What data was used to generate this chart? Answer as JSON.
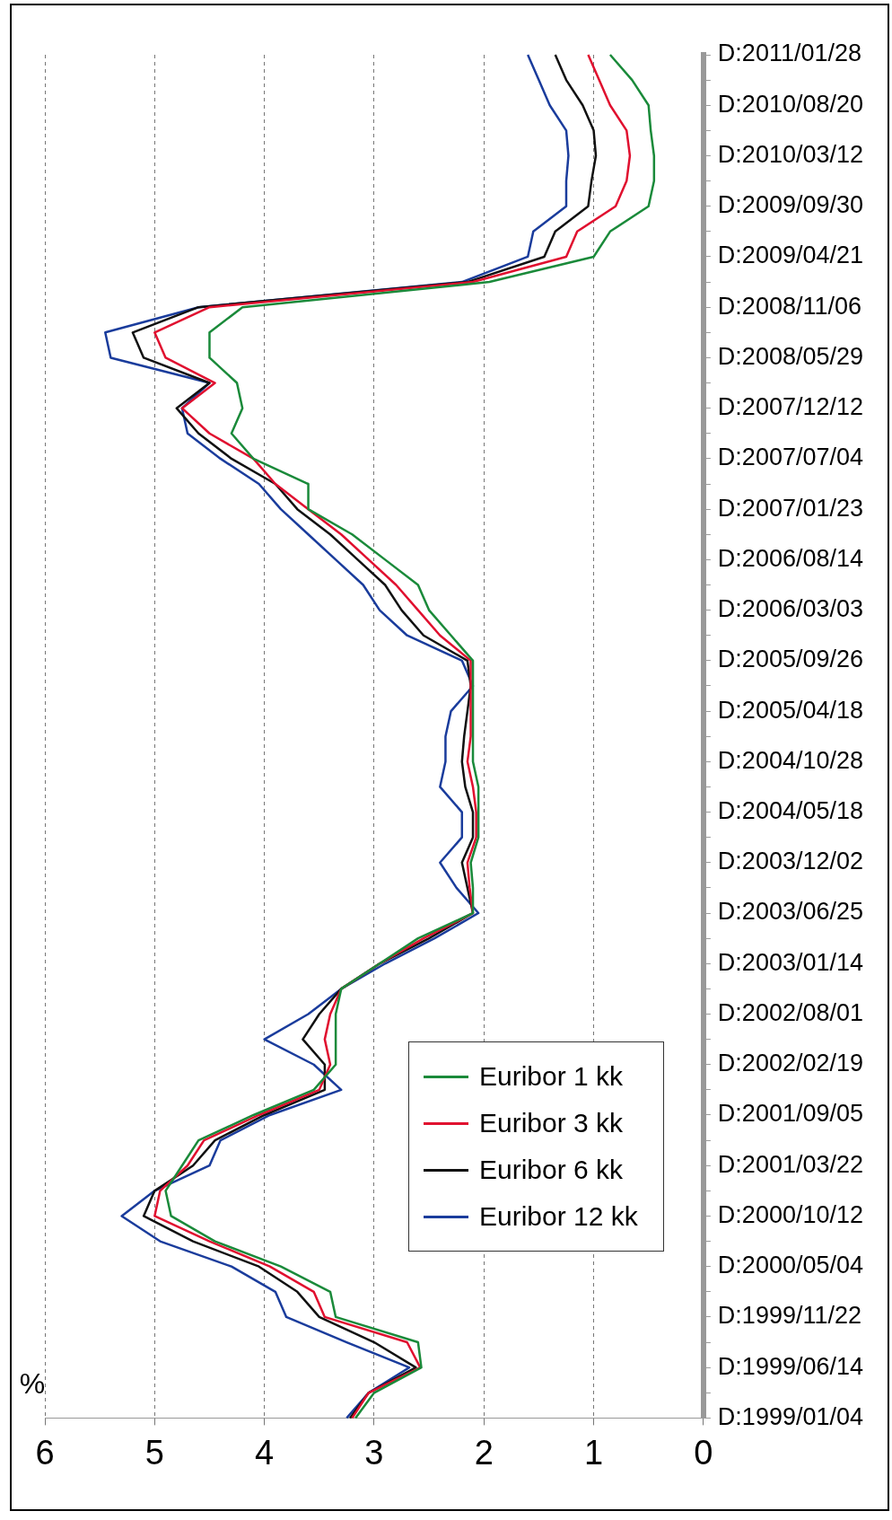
{
  "chart_data": {
    "type": "line",
    "orientation": "horizontal",
    "xlabel": "%",
    "legend": "bottom right",
    "grid": "x",
    "marker": "none",
    "xlim": [
      6,
      0
    ],
    "xticks": [
      6,
      5,
      4,
      3,
      2,
      1,
      0
    ],
    "categories": [
      "D:2011/01/28",
      null,
      "D:2010/08/20",
      null,
      "D:2010/03/12",
      null,
      "D:2009/09/30",
      null,
      "D:2009/04/21",
      null,
      "D:2008/11/06",
      null,
      "D:2008/05/29",
      null,
      "D:2007/12/12",
      null,
      "D:2007/07/04",
      null,
      "D:2007/01/23",
      null,
      "D:2006/08/14",
      null,
      "D:2006/03/03",
      null,
      "D:2005/09/26",
      null,
      "D:2005/04/18",
      null,
      "D:2004/10/28",
      null,
      "D:2004/05/18",
      null,
      "D:2003/12/02",
      null,
      "D:2003/06/25",
      null,
      "D:2003/01/14",
      null,
      "D:2002/08/01",
      null,
      "D:2002/02/19",
      null,
      "D:2001/09/05",
      null,
      "D:2001/03/22",
      null,
      "D:2000/10/12",
      null,
      "D:2000/05/04",
      null,
      "D:1999/11/22",
      null,
      "D:1999/06/14",
      null,
      "D:1999/01/04"
    ],
    "series": [
      {
        "name": "Euribor 1 kk",
        "color": "#1a8a3a",
        "values": [
          0.85,
          0.65,
          0.5,
          0.48,
          0.45,
          0.45,
          0.5,
          0.85,
          1.0,
          1.95,
          4.2,
          4.5,
          4.5,
          4.25,
          4.2,
          4.3,
          4.1,
          3.6,
          3.6,
          3.2,
          2.9,
          2.6,
          2.5,
          2.3,
          2.1,
          2.1,
          2.1,
          2.1,
          2.1,
          2.05,
          2.05,
          2.05,
          2.12,
          2.1,
          2.1,
          2.6,
          2.95,
          3.3,
          3.35,
          3.35,
          3.35,
          3.55,
          4.1,
          4.6,
          4.75,
          4.9,
          4.85,
          4.45,
          3.85,
          3.4,
          3.35,
          2.6,
          2.57,
          3.0,
          3.17
        ]
      },
      {
        "name": "Euribor 3 kk",
        "color": "#e0102f",
        "values": [
          1.05,
          0.95,
          0.85,
          0.7,
          0.67,
          0.7,
          0.8,
          1.15,
          1.25,
          2.1,
          4.5,
          5.0,
          4.9,
          4.45,
          4.75,
          4.5,
          4.1,
          3.9,
          3.6,
          3.3,
          3.05,
          2.8,
          2.6,
          2.4,
          2.12,
          2.12,
          2.12,
          2.12,
          2.15,
          2.1,
          2.07,
          2.07,
          2.15,
          2.13,
          2.1,
          2.55,
          2.95,
          3.3,
          3.4,
          3.45,
          3.4,
          3.5,
          4.05,
          4.55,
          4.7,
          4.95,
          5.0,
          4.5,
          3.95,
          3.55,
          3.45,
          2.7,
          2.58,
          3.05,
          3.2
        ]
      },
      {
        "name": "Euribor 6 kk",
        "color": "#111111",
        "values": [
          1.35,
          1.25,
          1.1,
          1.0,
          0.98,
          1.02,
          1.05,
          1.35,
          1.45,
          2.15,
          4.6,
          5.2,
          5.1,
          4.5,
          4.8,
          4.6,
          4.3,
          3.9,
          3.7,
          3.4,
          3.15,
          2.9,
          2.75,
          2.55,
          2.15,
          2.12,
          2.15,
          2.18,
          2.2,
          2.17,
          2.1,
          2.1,
          2.2,
          2.15,
          2.1,
          2.5,
          2.95,
          3.3,
          3.5,
          3.65,
          3.45,
          3.45,
          4.0,
          4.45,
          4.65,
          5.0,
          5.1,
          4.65,
          4.05,
          3.7,
          3.5,
          3.0,
          2.62,
          3.05,
          3.22
        ]
      },
      {
        "name": "Euribor 12 kk",
        "color": "#1a3c9c",
        "values": [
          1.6,
          1.5,
          1.4,
          1.25,
          1.23,
          1.25,
          1.25,
          1.55,
          1.6,
          2.2,
          4.6,
          5.45,
          5.4,
          4.5,
          4.75,
          4.7,
          4.4,
          4.05,
          3.85,
          3.6,
          3.35,
          3.1,
          2.95,
          2.7,
          2.2,
          2.1,
          2.3,
          2.35,
          2.35,
          2.4,
          2.2,
          2.2,
          2.4,
          2.25,
          2.05,
          2.45,
          2.9,
          3.3,
          3.6,
          4.0,
          3.55,
          3.3,
          3.95,
          4.4,
          4.5,
          5.0,
          5.3,
          4.95,
          4.3,
          3.9,
          3.8,
          3.25,
          2.68,
          3.05,
          3.25
        ]
      }
    ]
  }
}
